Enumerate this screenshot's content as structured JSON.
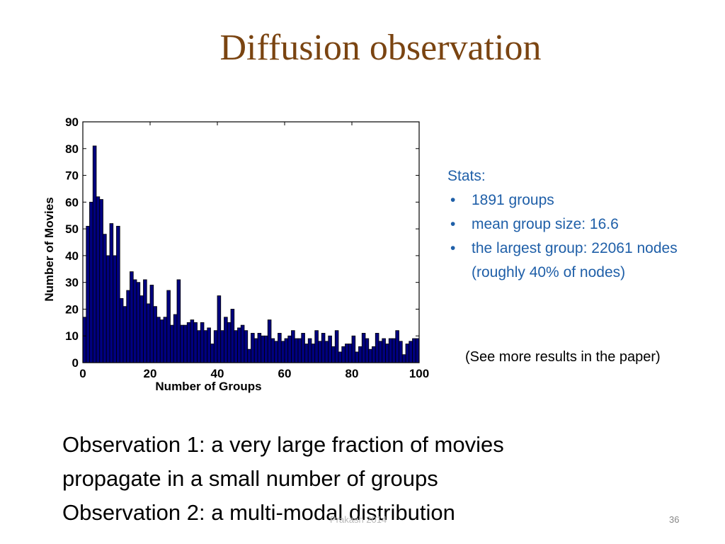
{
  "slide": {
    "title": "Diffusion observation",
    "stats_heading": "Stats:",
    "stats_items": [
      "1891 groups",
      "mean group size: 16.6",
      "the largest group: 22061 nodes (roughly 40% of nodes)"
    ],
    "note": "(See more results in the paper)",
    "observations": [
      "Observation 1:  a very large fraction of movies",
      "propagate in a small number of groups",
      "Observation 2:  a multi-modal distribution"
    ],
    "footer": "Prakash 2014",
    "page_number": "36"
  },
  "colors": {
    "title": "#7a4411",
    "stats_text": "#1f5fa8",
    "bar_fill": "#00007f"
  },
  "chart_data": {
    "type": "bar",
    "xlabel": "Number of Groups",
    "ylabel": "Number of Movies",
    "xlim": [
      0,
      100
    ],
    "ylim": [
      0,
      90
    ],
    "xticks": [
      0,
      20,
      40,
      60,
      80,
      100
    ],
    "yticks": [
      0,
      10,
      20,
      30,
      40,
      50,
      60,
      70,
      80,
      90
    ],
    "grid": false,
    "x": [
      1,
      2,
      3,
      4,
      5,
      6,
      7,
      8,
      9,
      10,
      11,
      12,
      13,
      14,
      15,
      16,
      17,
      18,
      19,
      20,
      21,
      22,
      23,
      24,
      25,
      26,
      27,
      28,
      29,
      30,
      31,
      32,
      33,
      34,
      35,
      36,
      37,
      38,
      39,
      40,
      41,
      42,
      43,
      44,
      45,
      46,
      47,
      48,
      49,
      50,
      51,
      52,
      53,
      54,
      55,
      56,
      57,
      58,
      59,
      60,
      61,
      62,
      63,
      64,
      65,
      66,
      67,
      68,
      69,
      70,
      71,
      72,
      73,
      74,
      75,
      76,
      77,
      78,
      79,
      80,
      81,
      82,
      83,
      84,
      85,
      86,
      87,
      88,
      89,
      90,
      91,
      92,
      93,
      94,
      95,
      96,
      97,
      98,
      99,
      100
    ],
    "values": [
      17,
      51,
      60,
      81,
      62,
      61,
      48,
      40,
      52,
      40,
      51,
      24,
      21,
      27,
      34,
      31,
      30,
      25,
      31,
      22,
      29,
      21,
      17,
      16,
      17,
      27,
      14,
      18,
      31,
      14,
      14,
      15,
      16,
      15,
      12,
      15,
      12,
      13,
      7,
      12,
      25,
      12,
      17,
      15,
      20,
      12,
      13,
      14,
      12,
      5,
      11,
      9,
      11,
      10,
      10,
      16,
      9,
      8,
      11,
      8,
      9,
      10,
      12,
      9,
      9,
      11,
      7,
      9,
      7,
      12,
      8,
      11,
      8,
      10,
      6,
      12,
      4,
      6,
      7,
      7,
      10,
      4,
      6,
      11,
      9,
      5,
      6,
      11,
      8,
      9,
      7,
      9,
      9,
      12,
      8,
      3,
      7,
      8,
      9,
      9
    ]
  }
}
